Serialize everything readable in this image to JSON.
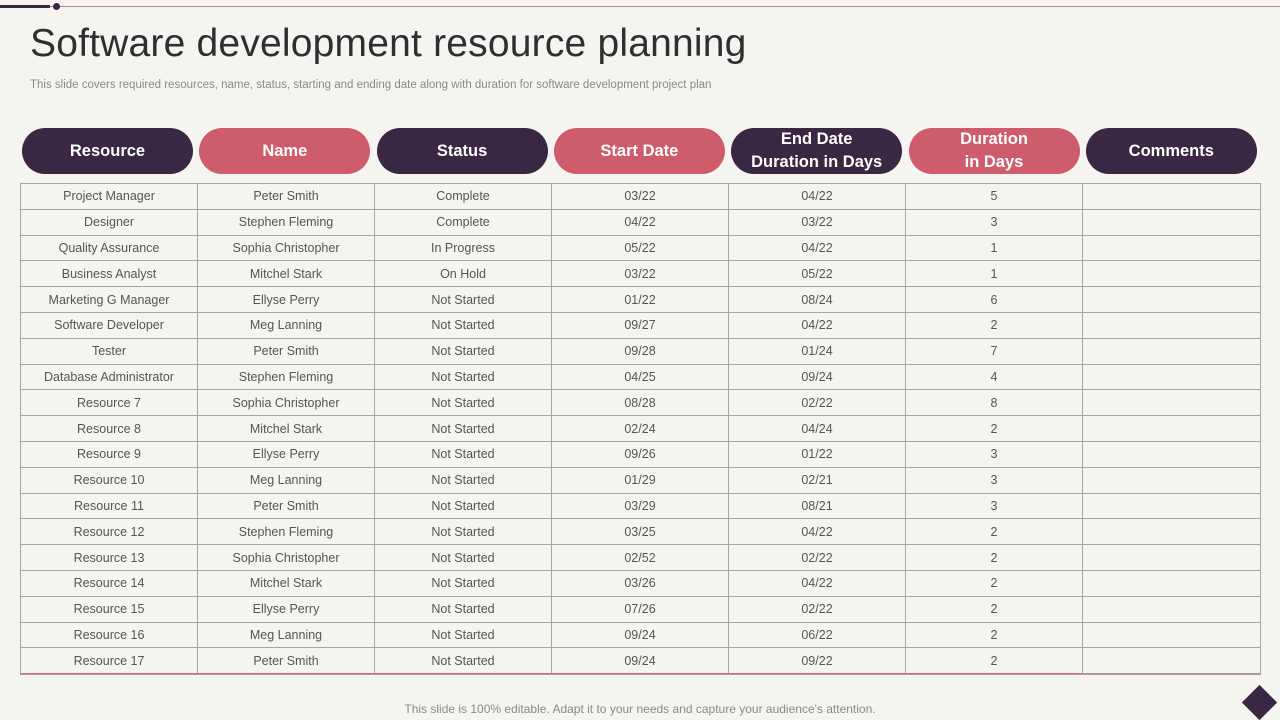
{
  "slide": {
    "title": "Software development resource planning",
    "subtitle": "This slide covers required resources, name, status, starting and ending date along with duration for software development project plan",
    "footer": "This slide is 100% editable. Adapt it to your needs and capture your audience's attention."
  },
  "colors": {
    "dark_purple": "#3a2741",
    "pink": "#cf5c6c",
    "background": "#f6f4f1"
  },
  "table": {
    "headers": [
      {
        "label": "Resource",
        "style": "dark"
      },
      {
        "label": "Name",
        "style": "pink"
      },
      {
        "label": "Status",
        "style": "dark"
      },
      {
        "label": "Start Date",
        "style": "pink"
      },
      {
        "label": "End Date\nDuration in Days",
        "style": "dark"
      },
      {
        "label": "Duration\nin Days",
        "style": "pink"
      },
      {
        "label": "Comments",
        "style": "dark"
      }
    ],
    "rows": [
      [
        "Project Manager",
        "Peter Smith",
        "Complete",
        "03/22",
        "04/22",
        "5",
        ""
      ],
      [
        "Designer",
        "Stephen Fleming",
        "Complete",
        "04/22",
        "03/22",
        "3",
        ""
      ],
      [
        "Quality Assurance",
        "Sophia Christopher",
        "In Progress",
        "05/22",
        "04/22",
        "1",
        ""
      ],
      [
        "Business Analyst",
        "Mitchel Stark",
        "On Hold",
        "03/22",
        "05/22",
        "1",
        ""
      ],
      [
        "Marketing G Manager",
        "Ellyse Perry",
        "Not Started",
        "01/22",
        "08/24",
        "6",
        ""
      ],
      [
        "Software Developer",
        "Meg Lanning",
        "Not Started",
        "09/27",
        "04/22",
        "2",
        ""
      ],
      [
        "Tester",
        "Peter Smith",
        "Not Started",
        "09/28",
        "01/24",
        "7",
        ""
      ],
      [
        "Database Administrator",
        "Stephen Fleming",
        "Not Started",
        "04/25",
        "09/24",
        "4",
        ""
      ],
      [
        "Resource 7",
        "Sophia Christopher",
        "Not Started",
        "08/28",
        "02/22",
        "8",
        ""
      ],
      [
        "Resource 8",
        "Mitchel Stark",
        "Not Started",
        "02/24",
        "04/24",
        "2",
        ""
      ],
      [
        "Resource 9",
        "Ellyse Perry",
        "Not Started",
        "09/26",
        "01/22",
        "3",
        ""
      ],
      [
        "Resource 10",
        "Meg Lanning",
        "Not Started",
        "01/29",
        "02/21",
        "3",
        ""
      ],
      [
        "Resource 11",
        "Peter Smith",
        "Not Started",
        "03/29",
        "08/21",
        "3",
        ""
      ],
      [
        "Resource 12",
        "Stephen Fleming",
        "Not Started",
        "03/25",
        "04/22",
        "2",
        ""
      ],
      [
        "Resource 13",
        "Sophia Christopher",
        "Not Started",
        "02/52",
        "02/22",
        "2",
        ""
      ],
      [
        "Resource 14",
        "Mitchel Stark",
        "Not Started",
        "03/26",
        "04/22",
        "2",
        ""
      ],
      [
        "Resource 15",
        "Ellyse Perry",
        "Not Started",
        "07/26",
        "02/22",
        "2",
        ""
      ],
      [
        "Resource 16",
        "Meg Lanning",
        "Not Started",
        "09/24",
        "06/22",
        "2",
        ""
      ],
      [
        "Resource 17",
        "Peter Smith",
        "Not Started",
        "09/24",
        "09/22",
        "2",
        ""
      ]
    ]
  }
}
